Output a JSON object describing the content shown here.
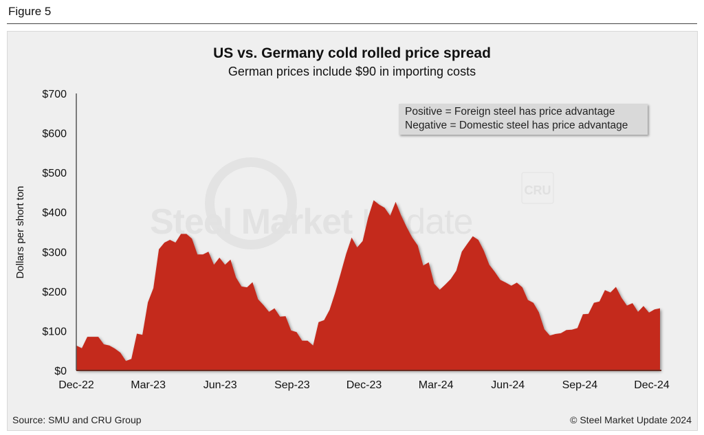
{
  "figure_label": "Figure 5",
  "source": "Source: SMU and CRU Group",
  "copyright": "© Steel Market Update 2024",
  "watermark": {
    "bold": "Steel Market",
    "light": " Update",
    "badge": "CRU"
  },
  "colors": {
    "area": "#c42a1e",
    "panel": "#efefef",
    "note_box": "#d9d9d9"
  },
  "chart_data": {
    "type": "area",
    "title": "US vs. Germany cold rolled price spread",
    "subtitle": "German prices include $90 in importing costs",
    "ylabel": "Dollars per short ton",
    "xlabel": "",
    "ylim": [
      0,
      700
    ],
    "y_ticks": [
      "$0",
      "$100",
      "$200",
      "$300",
      "$400",
      "$500",
      "$600",
      "$700"
    ],
    "x_ticks": [
      "Dec-22",
      "Mar-23",
      "Jun-23",
      "Sep-23",
      "Dec-23",
      "Mar-24",
      "Jun-24",
      "Sep-24",
      "Dec-24"
    ],
    "x_range": [
      "Dec-22",
      "Dec-24"
    ],
    "annotation": [
      "Positive = Foreign steel has price advantage",
      "Negative = Domestic steel has price advantage"
    ],
    "grid": false,
    "values": [
      63,
      56,
      85,
      85,
      85,
      66,
      63,
      55,
      45,
      24,
      29,
      93,
      90,
      172,
      208,
      306,
      323,
      330,
      323,
      345,
      345,
      333,
      293,
      293,
      300,
      267,
      285,
      267,
      280,
      235,
      212,
      210,
      223,
      180,
      165,
      148,
      157,
      136,
      137,
      101,
      97,
      75,
      75,
      63,
      122,
      127,
      153,
      196,
      245,
      295,
      336,
      311,
      327,
      387,
      430,
      419,
      411,
      391,
      426,
      391,
      362,
      336,
      316,
      265,
      273,
      219,
      204,
      217,
      231,
      252,
      300,
      320,
      339,
      330,
      303,
      267,
      249,
      229,
      222,
      214,
      222,
      210,
      178,
      171,
      147,
      104,
      88,
      92,
      94,
      102,
      103,
      107,
      142,
      143,
      171,
      174,
      203,
      197,
      211,
      184,
      164,
      170,
      148,
      163,
      146,
      154,
      157
    ]
  }
}
